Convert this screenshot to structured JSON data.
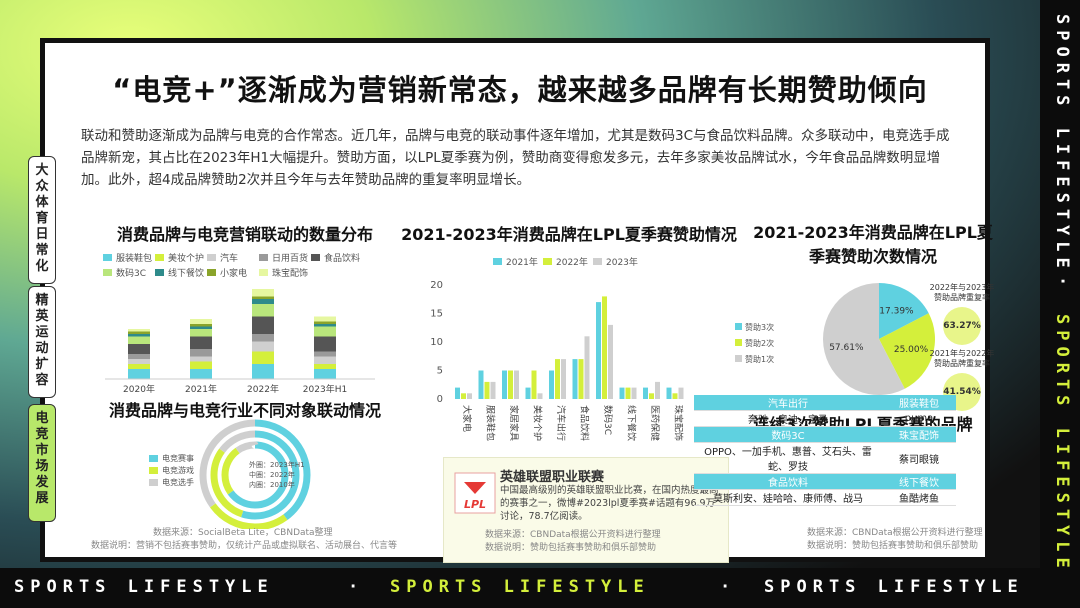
{
  "ribbon": {
    "text": "SPORTS LIFESTYLE",
    "sep": "·"
  },
  "tabs": [
    {
      "label": "大众体育日常化"
    },
    {
      "label": "精英运动扩容"
    },
    {
      "label": "电竞市场发展"
    }
  ],
  "title": "“电竞+”逐渐成为营销新常态，越来越多品牌有长期赞助倾向",
  "intro": "联动和赞助逐渐成为品牌与电竞的合作常态。近几年，品牌与电竞的联动事件逐年增加，尤其是数码3C与食品饮料品牌。众多联动中，电竞选手成品牌新宠，其占比在2023年H1大幅提升。赞助方面，以LPL夏季赛为例，赞助商变得愈发多元，去年多家美妆品牌试水，今年食品品牌数明显增加。此外，超4成品牌赞助2次并且今年与去年赞助品牌的重复率明显增长。",
  "chart1": {
    "title": "消费品牌与电竞营销联动的数量分布",
    "legend": [
      "服装鞋包",
      "美妆个护",
      "汽车",
      "日用百货",
      "食品饮料",
      "数码3C",
      "线下餐饮",
      "小家电",
      "珠宝配饰"
    ]
  },
  "chart2": {
    "title": "消费品牌与电竞行业不同对象联动情况",
    "legend": [
      "电竞赛事",
      "电竞游戏",
      "电竞选手"
    ],
    "ring_labels": [
      "外圈：2023年H1",
      "中圈：2022年",
      "内圈：2010年"
    ]
  },
  "chart3": {
    "title": "2021-2023年消费品牌在LPL夏季赛赞助情况"
  },
  "chart4": {
    "title": "2021-2023年消费品牌在LPL夏季赛赞助次数情况",
    "legend": [
      "赞助3次",
      "赞助2次",
      "赞助1次"
    ],
    "kpi1_label": "2022年与2023年赞助品牌重复率",
    "kpi1_value": "63.27%",
    "kpi2_label": "2021年与2022年赞助品牌重复率",
    "kpi2_value": "41.54%"
  },
  "lpl": {
    "name": "英雄联盟职业联赛",
    "logo_text": "LPL",
    "desc": "中国最高级别的英雄联盟职业比赛，在国内热度最高的赛事之一，微博#2023lpl夏季赛#话题有96.9万讨论，78.7亿阅读。"
  },
  "table": {
    "title": "连续3次赞助LPL夏季赛的品牌",
    "rows": [
      {
        "h": [
          "汽车出行",
          "服装鞋包"
        ],
        "v": [
          "奔驰、奥迪、宝马",
          "puma"
        ]
      },
      {
        "h": [
          "数码3C",
          "珠宝配饰"
        ],
        "v": [
          "OPPO、一加手机、惠普、艾石头、雷蛇、罗技",
          "蔡司眼镜"
        ]
      },
      {
        "h": [
          "食品饮料",
          "线下餐饮"
        ],
        "v": [
          "莫斯利安、娃哈哈、康师傅、战马",
          "鱼酷烤鱼"
        ]
      }
    ]
  },
  "notes": {
    "left_src": "数据来源：SocialBeta Lite，CBNData整理",
    "left_desc": "数据说明：营销不包括赛事赞助，仅统计产品或虚拟联名、活动展台、代言等",
    "mid_src": "数据来源：CBNData根据公开资料进行整理",
    "mid_desc": "数据说明：赞助包括赛事赞助和俱乐部赞助",
    "right_src": "数据来源：CBNData根据公开资料进行整理",
    "right_desc": "数据说明：赞助包括赛事赞助和俱乐部赞助"
  },
  "watermark": "CBNDATA",
  "chart_data": [
    {
      "type": "bar",
      "title": "消费品牌与电竞营销联动的数量分布",
      "stacked": true,
      "categories": [
        "2020年",
        "2021年",
        "2022年",
        "2023年H1"
      ],
      "series": [
        {
          "name": "服装鞋包",
          "values": [
            4,
            4,
            6,
            4
          ]
        },
        {
          "name": "美妆个护",
          "values": [
            2,
            3,
            5,
            2
          ]
        },
        {
          "name": "汽车",
          "values": [
            2,
            2,
            4,
            3
          ]
        },
        {
          "name": "日用百货",
          "values": [
            2,
            3,
            3,
            2
          ]
        },
        {
          "name": "食品饮料",
          "values": [
            4,
            5,
            7,
            6
          ]
        },
        {
          "name": "数码3C",
          "values": [
            3,
            3,
            5,
            4
          ]
        },
        {
          "name": "线下餐饮",
          "values": [
            1,
            1,
            2,
            1
          ]
        },
        {
          "name": "小家电",
          "values": [
            1,
            1,
            1,
            1
          ]
        },
        {
          "name": "珠宝配饰",
          "values": [
            1,
            2,
            3,
            2
          ]
        }
      ],
      "colors": [
        "#5fd1e0",
        "#d4ef3b",
        "#cfcfcf",
        "#9a9a9a",
        "#555555",
        "#b9e67c",
        "#2e8b8b",
        "#8aa42a",
        "#e6f7a0"
      ],
      "ylim": [
        0,
        40
      ]
    },
    {
      "type": "pie",
      "title": "消费品牌与电竞行业不同对象联动情况",
      "series": [
        {
          "name": "外圈：2023年H1",
          "values": [
            40,
            25,
            35
          ]
        },
        {
          "name": "中圈：2022年",
          "values": [
            55,
            30,
            15
          ]
        },
        {
          "name": "内圈：2010年",
          "values": [
            65,
            25,
            10
          ]
        }
      ],
      "categories": [
        "电竞赛事",
        "电竞游戏",
        "电竞选手"
      ],
      "colors": [
        "#5fd1e0",
        "#d4ef3b",
        "#cfcfcf"
      ]
    },
    {
      "type": "bar",
      "title": "2021-2023年消费品牌在LPL夏季赛赞助情况",
      "categories": [
        "大家电",
        "服装鞋包",
        "家居家具",
        "美妆个护",
        "汽车出行",
        "食品饮料",
        "数码3C",
        "线下餐饮",
        "医药保健",
        "珠宝配饰"
      ],
      "series": [
        {
          "name": "2021年",
          "values": [
            2,
            5,
            5,
            2,
            5,
            7,
            17,
            2,
            2,
            2
          ]
        },
        {
          "name": "2022年",
          "values": [
            1,
            3,
            5,
            5,
            7,
            7,
            18,
            2,
            1,
            1
          ]
        },
        {
          "name": "2023年",
          "values": [
            1,
            3,
            5,
            1,
            7,
            11,
            13,
            2,
            3,
            2
          ]
        }
      ],
      "colors": [
        "#5fd1e0",
        "#d4ef3b",
        "#cfcfcf"
      ],
      "ylim": [
        0,
        20
      ],
      "yticks": [
        0,
        5,
        10,
        15,
        20
      ]
    },
    {
      "type": "pie",
      "title": "2021-2023年消费品牌在LPL夏季赛赞助次数情况",
      "categories": [
        "赞助3次",
        "赞助2次",
        "赞助1次"
      ],
      "values": [
        17.39,
        25.0,
        57.61
      ],
      "labels": [
        "17.39%",
        "25.00%",
        "57.61%"
      ],
      "colors": [
        "#5fd1e0",
        "#d4ef3b",
        "#cfcfcf"
      ]
    }
  ]
}
